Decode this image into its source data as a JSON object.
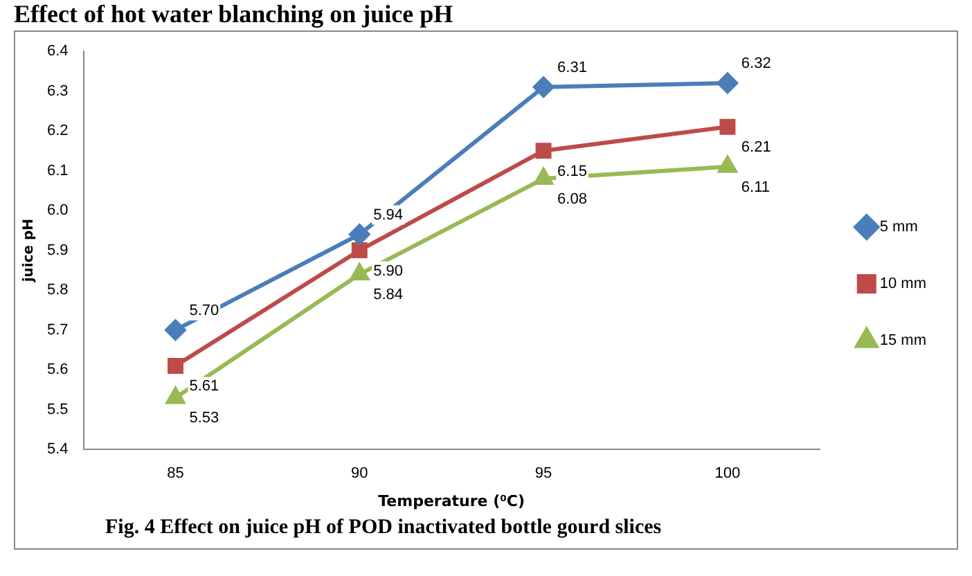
{
  "chart_data": {
    "type": "line",
    "title": "Effect of hot water blanching on juice pH",
    "xlabel": "Temperature (⁰C)",
    "ylabel": "juice pH",
    "categories": [
      "85",
      "90",
      "95",
      "100"
    ],
    "series": [
      {
        "name": "5 mm",
        "color": "#4a7ebb",
        "values": [
          5.7,
          5.94,
          6.31,
          6.32
        ],
        "value_labels": [
          "5.70",
          "5.94",
          "6.31",
          "6.32"
        ],
        "marker": "diamond"
      },
      {
        "name": "10 mm",
        "color": "#be4b48",
        "values": [
          5.61,
          5.9,
          6.15,
          6.21
        ],
        "value_labels": [
          "5.61",
          "5.90",
          "6.15",
          "6.21"
        ],
        "marker": "square"
      },
      {
        "name": "15 mm",
        "color": "#98b954",
        "values": [
          5.53,
          5.84,
          6.08,
          6.11
        ],
        "value_labels": [
          "5.53",
          "5.84",
          "6.08",
          "6.11"
        ],
        "marker": "triangle"
      }
    ],
    "ylim": [
      5.4,
      6.4
    ],
    "yticks": [
      5.4,
      5.5,
      5.6,
      5.7,
      5.8,
      5.9,
      {
        "value": 6,
        "label": "6.0"
      },
      6.1,
      6.2,
      6.3,
      6.4
    ],
    "grid": false,
    "legend": "right",
    "line_style": "solid",
    "annotations": [
      "Fig. 4  Effect on juice pH of  POD inactivated bottle gourd slices"
    ]
  }
}
